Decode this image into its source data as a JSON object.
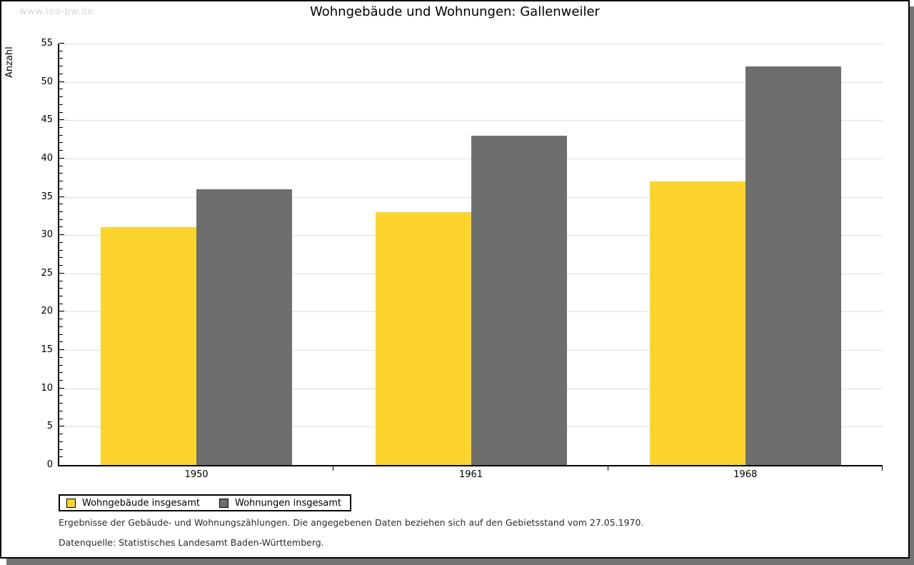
{
  "watermark": "www.leo-bw.de",
  "header": {
    "title": "Wohngebäude und Wohnungen: Gallenweiler"
  },
  "chart_data": {
    "type": "bar",
    "title": "Wohngebäude und Wohnungen: Gallenweiler",
    "categories": [
      "1950",
      "1961",
      "1968"
    ],
    "series": [
      {
        "name": "Wohngebäude insgesamt",
        "color": "#fcd42d",
        "values": [
          31,
          33,
          37
        ]
      },
      {
        "name": "Wohnungen insgesamt",
        "color": "#6e6e6e",
        "values": [
          36,
          43,
          52
        ]
      }
    ],
    "xlabel": "",
    "ylabel": "Anzahl",
    "ylim": [
      0,
      55
    ],
    "ytick_step": 5,
    "ytick_minor_step": 1,
    "grid": true,
    "gridline_color": "#dedede",
    "legend_position": "bottom-left"
  },
  "footer": {
    "line1": "Ergebnisse der Gebäude- und Wohnungszählungen. Die angegebenen Daten beziehen sich auf den Gebietsstand vom 27.05.1970.",
    "line2": "Datenquelle: Statistisches Landesamt Baden-Württemberg."
  },
  "colors": {
    "panel_border": "#000000",
    "shadow": "#747474",
    "watermark": "#d8d8d8",
    "series1": "#fcd42d",
    "series2": "#6e6e6e"
  }
}
